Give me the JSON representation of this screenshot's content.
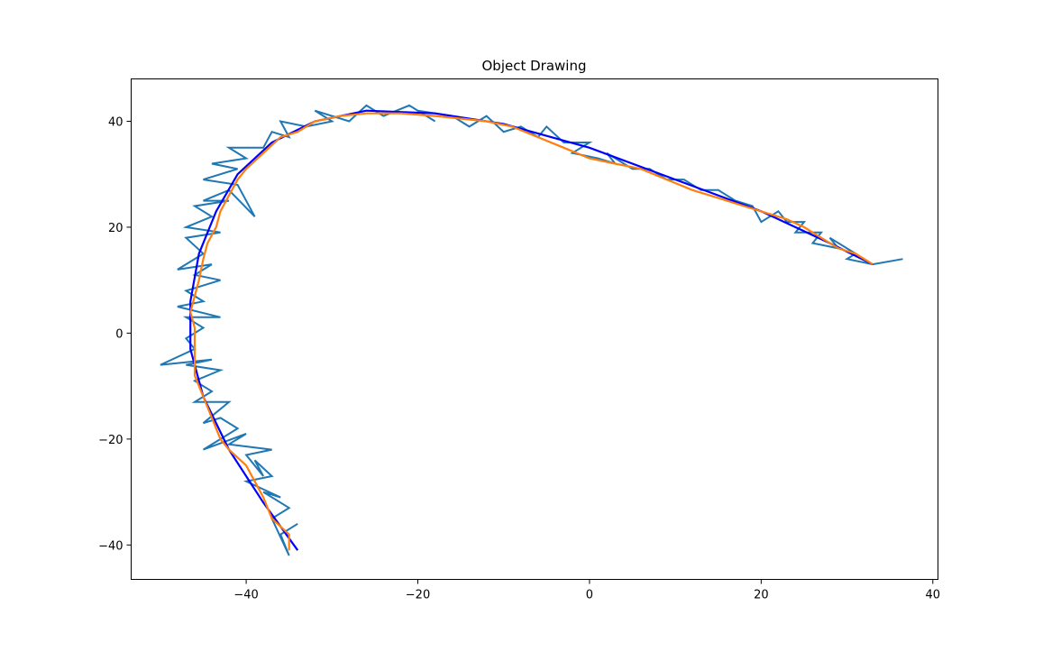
{
  "chart_data": {
    "type": "line",
    "title": "Object Drawing",
    "xlabel": "",
    "ylabel": "",
    "xlim": [
      -53.4,
      40.6
    ],
    "ylim": [
      -46.5,
      48.0
    ],
    "xticks": [
      -40,
      -20,
      0,
      20,
      40
    ],
    "yticks": [
      -40,
      -20,
      0,
      20,
      40
    ],
    "grid": false,
    "legend": "none",
    "series": [
      {
        "color": "#1f77b4",
        "points": [
          [
            -34,
            -36
          ],
          [
            -36,
            -38
          ],
          [
            -35,
            -42
          ],
          [
            -37,
            -35
          ],
          [
            -35,
            -33
          ],
          [
            -38,
            -30
          ],
          [
            -36,
            -31
          ],
          [
            -40,
            -28
          ],
          [
            -37,
            -27
          ],
          [
            -39,
            -24
          ],
          [
            -38,
            -27
          ],
          [
            -40,
            -23
          ],
          [
            -37,
            -22
          ],
          [
            -42,
            -21
          ],
          [
            -40,
            -19
          ],
          [
            -45,
            -22
          ],
          [
            -41,
            -18
          ],
          [
            -43,
            -16
          ],
          [
            -45,
            -17
          ],
          [
            -42,
            -13
          ],
          [
            -46,
            -13
          ],
          [
            -44,
            -11
          ],
          [
            -46,
            -9
          ],
          [
            -43,
            -7
          ],
          [
            -47,
            -6
          ],
          [
            -44,
            -5
          ],
          [
            -50,
            -6
          ],
          [
            -46,
            -3
          ],
          [
            -47,
            -1
          ],
          [
            -45,
            1
          ],
          [
            -47,
            3
          ],
          [
            -43,
            3
          ],
          [
            -48,
            5
          ],
          [
            -45,
            6
          ],
          [
            -47,
            8
          ],
          [
            -43,
            10
          ],
          [
            -46,
            11
          ],
          [
            -44,
            13
          ],
          [
            -48,
            12
          ],
          [
            -45,
            15
          ],
          [
            -47,
            18
          ],
          [
            -43,
            19
          ],
          [
            -47,
            20
          ],
          [
            -44,
            22
          ],
          [
            -46,
            24
          ],
          [
            -42,
            25
          ],
          [
            -45,
            25
          ],
          [
            -42,
            27
          ],
          [
            -39,
            22
          ],
          [
            -41,
            28
          ],
          [
            -45,
            29
          ],
          [
            -41,
            31
          ],
          [
            -44,
            32
          ],
          [
            -40,
            33
          ],
          [
            -42,
            35
          ],
          [
            -38,
            35
          ],
          [
            -37,
            38
          ],
          [
            -35,
            37
          ],
          [
            -36,
            40
          ],
          [
            -33,
            39
          ],
          [
            -30,
            40
          ],
          [
            -32,
            42
          ],
          [
            -28,
            40
          ],
          [
            -26,
            43
          ],
          [
            -24,
            41
          ],
          [
            -21,
            43
          ],
          [
            -18,
            40
          ],
          [
            -20,
            42
          ],
          [
            -16,
            41
          ],
          [
            -14,
            39
          ],
          [
            -12,
            41
          ],
          [
            -10,
            38
          ],
          [
            -8,
            39
          ],
          [
            -6,
            37
          ],
          [
            -5,
            39
          ],
          [
            -3,
            36
          ],
          [
            0,
            36
          ],
          [
            -2,
            34
          ],
          [
            1,
            33
          ],
          [
            3,
            32
          ],
          [
            2,
            34
          ],
          [
            5,
            31
          ],
          [
            7,
            31
          ],
          [
            9,
            29
          ],
          [
            11,
            29
          ],
          [
            13,
            27
          ],
          [
            15,
            27
          ],
          [
            17,
            25
          ],
          [
            19,
            24
          ],
          [
            20,
            21
          ],
          [
            22,
            23
          ],
          [
            23,
            21
          ],
          [
            25,
            21
          ],
          [
            24,
            19
          ],
          [
            27,
            19
          ],
          [
            26,
            17
          ],
          [
            29,
            16
          ],
          [
            28,
            18
          ],
          [
            31,
            15
          ],
          [
            30,
            14
          ],
          [
            33,
            13
          ],
          [
            36.5,
            14
          ]
        ]
      },
      {
        "color": "#0000ff",
        "points": [
          [
            -34,
            -41
          ],
          [
            -38,
            -32
          ],
          [
            -42,
            -22
          ],
          [
            -45,
            -12
          ],
          [
            -46.5,
            -3
          ],
          [
            -46.5,
            6
          ],
          [
            -45.5,
            15
          ],
          [
            -43.5,
            23
          ],
          [
            -41,
            30
          ],
          [
            -37,
            36
          ],
          [
            -32,
            40
          ],
          [
            -26,
            42
          ],
          [
            -18,
            41.5
          ],
          [
            -10,
            39.5
          ],
          [
            0,
            35
          ],
          [
            10,
            29
          ],
          [
            20,
            23
          ],
          [
            28,
            17
          ],
          [
            33,
            13
          ]
        ]
      },
      {
        "color": "#ff7f0e",
        "points": [
          [
            -35,
            -41
          ],
          [
            -35,
            -38
          ],
          [
            -37,
            -35
          ],
          [
            -38,
            -31
          ],
          [
            -39,
            -28
          ],
          [
            -40,
            -25
          ],
          [
            -42,
            -22
          ],
          [
            -43,
            -20
          ],
          [
            -44,
            -16
          ],
          [
            -45,
            -12
          ],
          [
            -46,
            -8
          ],
          [
            -46,
            -5
          ],
          [
            -46,
            -2
          ],
          [
            -46,
            1
          ],
          [
            -46.5,
            4
          ],
          [
            -46,
            7
          ],
          [
            -45.5,
            10
          ],
          [
            -45,
            14
          ],
          [
            -44.5,
            17
          ],
          [
            -43.5,
            20
          ],
          [
            -43,
            23
          ],
          [
            -42,
            26
          ],
          [
            -41,
            29
          ],
          [
            -40,
            31
          ],
          [
            -38,
            34
          ],
          [
            -36,
            37
          ],
          [
            -34,
            38
          ],
          [
            -32,
            40
          ],
          [
            -29,
            41
          ],
          [
            -26,
            41.5
          ],
          [
            -22,
            41.5
          ],
          [
            -18,
            41
          ],
          [
            -15,
            40.5
          ],
          [
            -12,
            40
          ],
          [
            -9,
            39
          ],
          [
            -6,
            37
          ],
          [
            -3,
            35
          ],
          [
            0,
            33
          ],
          [
            3,
            32
          ],
          [
            6,
            31
          ],
          [
            9,
            29
          ],
          [
            12,
            27
          ],
          [
            15,
            25.5
          ],
          [
            18,
            24
          ],
          [
            21,
            22.5
          ],
          [
            23,
            21.5
          ],
          [
            25,
            20
          ],
          [
            27,
            18
          ],
          [
            29,
            16
          ],
          [
            31,
            15
          ],
          [
            33,
            13
          ]
        ]
      }
    ]
  }
}
